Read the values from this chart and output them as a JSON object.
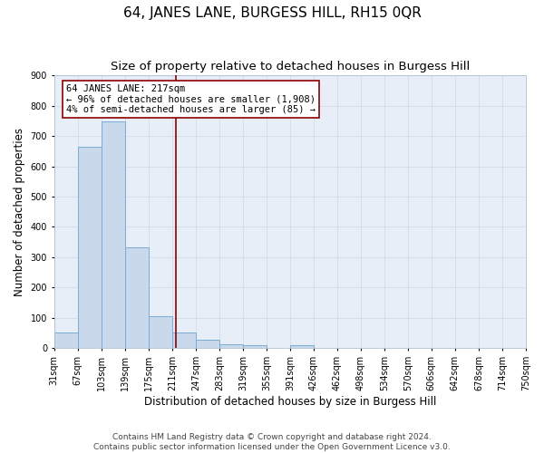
{
  "title": "64, JANES LANE, BURGESS HILL, RH15 0QR",
  "subtitle": "Size of property relative to detached houses in Burgess Hill",
  "xlabel": "Distribution of detached houses by size in Burgess Hill",
  "ylabel": "Number of detached properties",
  "bar_left_edges": [
    31,
    67,
    103,
    139,
    175,
    211,
    247,
    283,
    319,
    355,
    391,
    426,
    462,
    498,
    534,
    570,
    606,
    642,
    678,
    714
  ],
  "bar_heights": [
    52,
    663,
    748,
    334,
    106,
    52,
    27,
    14,
    10,
    0,
    10,
    0,
    0,
    0,
    0,
    0,
    0,
    0,
    0,
    0
  ],
  "bin_width": 36,
  "bar_color": "#c9d9eb",
  "bar_edge_color": "#7aadd4",
  "property_size": 217,
  "vline_color": "#8b0000",
  "annotation_text": "64 JANES LANE: 217sqm\n← 96% of detached houses are smaller (1,908)\n4% of semi-detached houses are larger (85) →",
  "annotation_box_edge_color": "#8b0000",
  "annotation_box_face_color": "#ffffff",
  "tick_labels": [
    "31sqm",
    "67sqm",
    "103sqm",
    "139sqm",
    "175sqm",
    "211sqm",
    "247sqm",
    "283sqm",
    "319sqm",
    "355sqm",
    "391sqm",
    "426sqm",
    "462sqm",
    "498sqm",
    "534sqm",
    "570sqm",
    "606sqm",
    "642sqm",
    "678sqm",
    "714sqm",
    "750sqm"
  ],
  "ylim": [
    0,
    900
  ],
  "yticks": [
    0,
    100,
    200,
    300,
    400,
    500,
    600,
    700,
    800,
    900
  ],
  "grid_color": "#d0dcee",
  "background_color": "#e8eef8",
  "footer_line1": "Contains HM Land Registry data © Crown copyright and database right 2024.",
  "footer_line2": "Contains public sector information licensed under the Open Government Licence v3.0.",
  "title_fontsize": 11,
  "subtitle_fontsize": 9.5,
  "axis_label_fontsize": 8.5,
  "tick_fontsize": 7,
  "annotation_fontsize": 7.5,
  "footer_fontsize": 6.5
}
